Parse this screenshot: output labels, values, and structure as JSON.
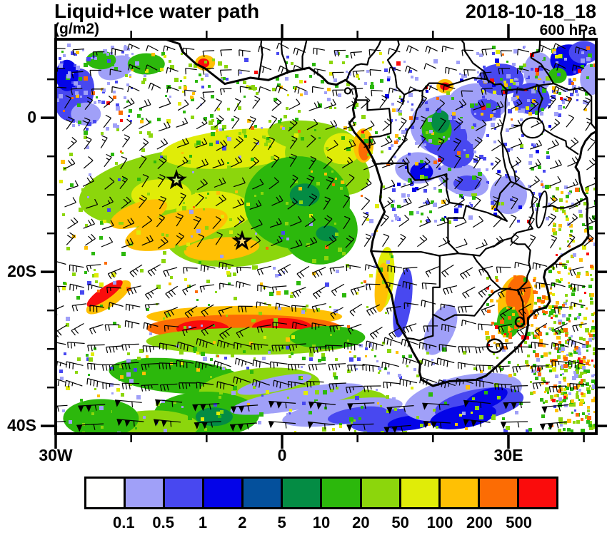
{
  "header": {
    "title": "Liquid+Ice water path",
    "units": "(g/m2)",
    "datetime": "2018-10-18_18",
    "level": "600 hPa"
  },
  "axes": {
    "x": [
      "30W",
      "0",
      "30E"
    ],
    "y": [
      "0",
      "20S",
      "40S"
    ]
  },
  "chart_data": {
    "type": "heatmap",
    "title": "Liquid+Ice water path",
    "units": "g/m2",
    "valid_time": "2018-10-18_18",
    "pressure_level": "600 hPa",
    "x_axis": {
      "labeled_ticks": [
        "30W",
        "0",
        "30E"
      ],
      "tick_interval_deg": 10,
      "lon_range_deg": [
        -30,
        41.6
      ]
    },
    "y_axis": {
      "labeled_ticks": [
        "0",
        "20S",
        "40S"
      ],
      "tick_interval_deg": 5,
      "lat_range_deg": [
        -41,
        10.2
      ]
    },
    "colorbar": {
      "levels": [
        0.1,
        0.5,
        1,
        2,
        5,
        10,
        20,
        50,
        100,
        200,
        500
      ],
      "labels": [
        "0.1",
        "0.5",
        "1",
        "2",
        "5",
        "10",
        "20",
        "50",
        "100",
        "200",
        "500"
      ],
      "colors": [
        "#FFFFFE",
        "#A0A0F8",
        "#4848F0",
        "#0404E8",
        "#04509C",
        "#048C44",
        "#2CB80C",
        "#8CD60C",
        "#E0EC08",
        "#FFC004",
        "#FC6C04",
        "#FA0C0C"
      ]
    },
    "overlays": [
      "600 hPa wind barbs",
      "coastlines",
      "country borders"
    ],
    "star_markers_lonlat": [
      [
        -14.0,
        -8.1
      ],
      [
        -5.3,
        -16.0
      ]
    ],
    "features": [
      "Broad yellow-green 20-100 g/m2 deck over SE Atlantic between about 3S-18S and 27W-8E with green 10-20 g/m2 core",
      "Orange-red 200-500+ g/m2 zonal band near 26S-29S from 18W to 10E",
      "Scattered blue 0.5-2 g/m2 cells over the Congo basin with green cores",
      "Orange 100-500 g/m2 cluster over eastern South Africa / Mozambique near 31E 23S-26S",
      "Periwinkle and deep blue streaks southeast of the Cape near 35S-40S",
      "Strong westerlies with pennant barbs along 36S-40S"
    ]
  }
}
